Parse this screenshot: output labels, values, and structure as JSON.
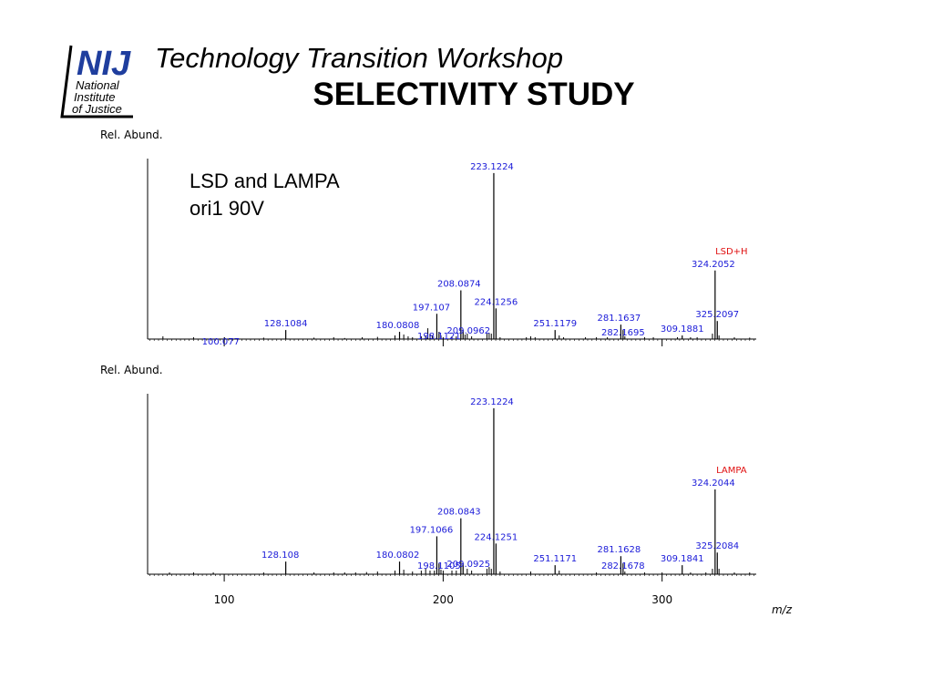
{
  "header": {
    "logo_letters": "NIJ",
    "logo_line1": "National",
    "logo_line2": "Institute",
    "logo_line3": "of Justice",
    "workshop": "Technology Transition Workshop",
    "title": "SELECTIVITY STUDY"
  },
  "annotation": {
    "line1": "LSD and LAMPA",
    "line2": "ori1 90V"
  },
  "colors": {
    "peak_label": "#1a1ad8",
    "compound_label": "#e01010",
    "logo_blue": "#1f3e9e"
  },
  "chart_data": [
    {
      "type": "bar",
      "title": "",
      "ylabel": "Rel. Abund.",
      "xlabel": "",
      "xlim": [
        65,
        343
      ],
      "ylim": [
        0,
        100
      ],
      "compound_label": "LSD+H",
      "peaks": [
        {
          "mz": 100.077,
          "rel": 1.0,
          "label": "100.077"
        },
        {
          "mz": 128.1084,
          "rel": 5.0,
          "label": "128.1084"
        },
        {
          "mz": 180.0808,
          "rel": 4.0,
          "label": "180.0808"
        },
        {
          "mz": 197.107,
          "rel": 14.0,
          "label": "197.107"
        },
        {
          "mz": 198.1121,
          "rel": 4.0,
          "label": "198.1121"
        },
        {
          "mz": 208.0874,
          "rel": 27.0,
          "label": "208.0874"
        },
        {
          "mz": 209.0962,
          "rel": 5.0,
          "label": "209.0962"
        },
        {
          "mz": 223.1224,
          "rel": 92.0,
          "label": "223.1224"
        },
        {
          "mz": 224.1256,
          "rel": 17.0,
          "label": "224.1256"
        },
        {
          "mz": 251.1179,
          "rel": 5.0,
          "label": "251.1179"
        },
        {
          "mz": 281.1637,
          "rel": 8.0,
          "label": "281.1637"
        },
        {
          "mz": 282.1695,
          "rel": 5.0,
          "label": "282.1695"
        },
        {
          "mz": 309.1881,
          "rel": 2.0,
          "label": "309.1881"
        },
        {
          "mz": 324.2052,
          "rel": 38.0,
          "label": "324.2052"
        },
        {
          "mz": 325.2097,
          "rel": 10.0,
          "label": "325.2097"
        }
      ],
      "minor_peaks": [
        [
          72,
          1.5
        ],
        [
          86,
          1
        ],
        [
          118,
          0.8
        ],
        [
          141,
          0.8
        ],
        [
          150,
          1
        ],
        [
          155,
          0.6
        ],
        [
          163,
          1
        ],
        [
          170,
          1.2
        ],
        [
          178,
          2
        ],
        [
          182,
          2.5
        ],
        [
          184,
          1.5
        ],
        [
          186,
          1
        ],
        [
          190,
          1.5
        ],
        [
          192,
          2
        ],
        [
          193,
          6
        ],
        [
          194,
          3
        ],
        [
          195,
          2
        ],
        [
          199,
          2
        ],
        [
          200,
          1
        ],
        [
          204,
          1.5
        ],
        [
          206,
          1.5
        ],
        [
          210,
          2.5
        ],
        [
          211,
          3
        ],
        [
          213,
          1.5
        ],
        [
          220,
          3
        ],
        [
          221,
          3.5
        ],
        [
          222,
          3
        ],
        [
          226,
          1
        ],
        [
          238,
          1
        ],
        [
          240,
          1.5
        ],
        [
          242,
          1
        ],
        [
          253,
          2
        ],
        [
          255,
          1
        ],
        [
          265,
          1
        ],
        [
          270,
          1
        ],
        [
          275,
          1
        ],
        [
          283,
          1.5
        ],
        [
          292,
          1
        ],
        [
          296,
          1
        ],
        [
          307,
          1
        ],
        [
          313,
          1
        ],
        [
          316,
          1
        ],
        [
          323,
          3
        ],
        [
          326,
          2
        ],
        [
          333,
          1
        ],
        [
          340,
          0.8
        ]
      ]
    },
    {
      "type": "bar",
      "title": "",
      "ylabel": "Rel. Abund.",
      "xlabel": "m/z",
      "xlim": [
        65,
        343
      ],
      "ylim": [
        0,
        100
      ],
      "xticks": [
        100,
        200,
        300
      ],
      "compound_label": "LAMPA",
      "peaks": [
        {
          "mz": 128.108,
          "rel": 7.0,
          "label": "128.108"
        },
        {
          "mz": 180.0802,
          "rel": 7.0,
          "label": "180.0802"
        },
        {
          "mz": 197.1066,
          "rel": 21.0,
          "label": "197.1066"
        },
        {
          "mz": 198.1105,
          "rel": 6.0,
          "label": "198.1105"
        },
        {
          "mz": 208.0843,
          "rel": 31.0,
          "label": "208.0843"
        },
        {
          "mz": 209.0925,
          "rel": 6.0,
          "label": "209.0925"
        },
        {
          "mz": 223.1224,
          "rel": 92.0,
          "label": "223.1224"
        },
        {
          "mz": 224.1251,
          "rel": 17.0,
          "label": "224.1251"
        },
        {
          "mz": 251.1171,
          "rel": 5.0,
          "label": "251.1171"
        },
        {
          "mz": 281.1628,
          "rel": 10.0,
          "label": "281.1628"
        },
        {
          "mz": 282.1678,
          "rel": 6.0,
          "label": "282.1678"
        },
        {
          "mz": 309.1841,
          "rel": 5.0,
          "label": "309.1841"
        },
        {
          "mz": 324.2044,
          "rel": 47.0,
          "label": "324.2044"
        },
        {
          "mz": 325.2084,
          "rel": 12.0,
          "label": "325.2084"
        }
      ],
      "minor_peaks": [
        [
          75,
          1
        ],
        [
          86,
          1
        ],
        [
          95,
          1
        ],
        [
          118,
          1
        ],
        [
          141,
          1
        ],
        [
          150,
          1
        ],
        [
          155,
          1
        ],
        [
          160,
          1
        ],
        [
          165,
          1.2
        ],
        [
          170,
          1.5
        ],
        [
          178,
          2
        ],
        [
          182,
          2.5
        ],
        [
          186,
          1.5
        ],
        [
          190,
          2
        ],
        [
          192,
          3
        ],
        [
          194,
          2
        ],
        [
          196,
          2
        ],
        [
          199,
          2.5
        ],
        [
          200,
          2
        ],
        [
          204,
          2
        ],
        [
          206,
          2
        ],
        [
          211,
          3
        ],
        [
          213,
          2
        ],
        [
          220,
          3
        ],
        [
          221,
          4
        ],
        [
          222,
          3
        ],
        [
          226,
          1.5
        ],
        [
          240,
          1.5
        ],
        [
          253,
          2
        ],
        [
          270,
          1
        ],
        [
          283,
          1.5
        ],
        [
          292,
          1
        ],
        [
          300,
          1
        ],
        [
          313,
          1
        ],
        [
          320,
          1
        ],
        [
          323,
          3
        ],
        [
          326,
          3
        ],
        [
          333,
          1
        ],
        [
          340,
          1
        ]
      ]
    }
  ]
}
